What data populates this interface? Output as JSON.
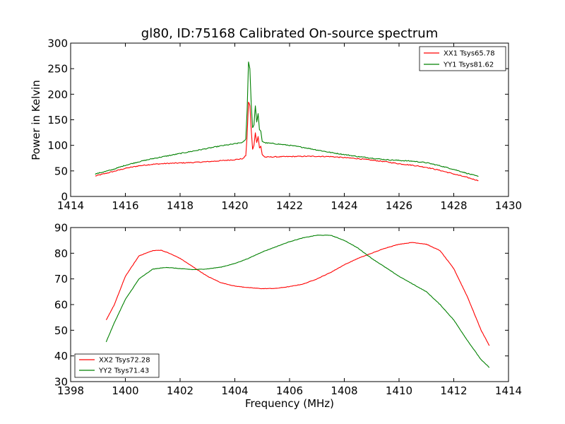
{
  "title": "gl80, ID:75168 Calibrated On-source spectrum",
  "colors": {
    "red": "#ff0000",
    "green": "#008000"
  },
  "chart_data": [
    {
      "type": "line",
      "ylabel": "Power in Kelvin",
      "xlabel": "",
      "xlim": [
        1414,
        1430
      ],
      "ylim": [
        0,
        300
      ],
      "xticks": [
        "1414",
        "1416",
        "1418",
        "1420",
        "1422",
        "1424",
        "1426",
        "1428",
        "1430"
      ],
      "yticks": [
        "0",
        "50",
        "100",
        "150",
        "200",
        "250",
        "300"
      ],
      "legend_position": "top-right",
      "series": [
        {
          "name": "XX1 Tsys65.78",
          "color": "#ff0000",
          "points": [
            [
              1414.9,
              40
            ],
            [
              1415.5,
              48
            ],
            [
              1416,
              55
            ],
            [
              1416.5,
              60
            ],
            [
              1417,
              63
            ],
            [
              1417.5,
              64.5
            ],
            [
              1418,
              65.5
            ],
            [
              1418.5,
              66.5
            ],
            [
              1419,
              68
            ],
            [
              1419.5,
              70
            ],
            [
              1420,
              72
            ],
            [
              1420.3,
              74
            ],
            [
              1420.4,
              80
            ],
            [
              1420.45,
              120
            ],
            [
              1420.5,
              185
            ],
            [
              1420.55,
              178
            ],
            [
              1420.6,
              130
            ],
            [
              1420.65,
              92
            ],
            [
              1420.7,
              100
            ],
            [
              1420.75,
              125
            ],
            [
              1420.8,
              105
            ],
            [
              1420.85,
              118
            ],
            [
              1420.9,
              95
            ],
            [
              1420.95,
              98
            ],
            [
              1421,
              82
            ],
            [
              1421.1,
              77
            ],
            [
              1421.5,
              77.5
            ],
            [
              1422,
              78
            ],
            [
              1422.5,
              78.5
            ],
            [
              1423,
              78.5
            ],
            [
              1423.5,
              78
            ],
            [
              1424,
              76
            ],
            [
              1424.5,
              74
            ],
            [
              1425,
              71
            ],
            [
              1425.5,
              68
            ],
            [
              1426,
              64
            ],
            [
              1426.5,
              61
            ],
            [
              1427,
              57
            ],
            [
              1427.5,
              51
            ],
            [
              1428,
              44
            ],
            [
              1428.5,
              37
            ],
            [
              1428.9,
              31
            ]
          ]
        },
        {
          "name": "YY1 Tsys81.62",
          "color": "#008000",
          "points": [
            [
              1414.9,
              44
            ],
            [
              1415.5,
              52
            ],
            [
              1416,
              61
            ],
            [
              1416.5,
              68
            ],
            [
              1417,
              74
            ],
            [
              1417.5,
              79
            ],
            [
              1418,
              84
            ],
            [
              1418.5,
              89
            ],
            [
              1419,
              94
            ],
            [
              1419.5,
              99
            ],
            [
              1420,
              103
            ],
            [
              1420.3,
              106
            ],
            [
              1420.4,
              112
            ],
            [
              1420.45,
              170
            ],
            [
              1420.5,
              263
            ],
            [
              1420.55,
              250
            ],
            [
              1420.6,
              180
            ],
            [
              1420.65,
              135
            ],
            [
              1420.7,
              140
            ],
            [
              1420.75,
              178
            ],
            [
              1420.8,
              145
            ],
            [
              1420.85,
              162
            ],
            [
              1420.9,
              130
            ],
            [
              1420.95,
              128
            ],
            [
              1421,
              108
            ],
            [
              1421.1,
              105
            ],
            [
              1421.5,
              103
            ],
            [
              1422,
              100
            ],
            [
              1422.5,
              96
            ],
            [
              1423,
              91
            ],
            [
              1423.5,
              86
            ],
            [
              1424,
              82
            ],
            [
              1424.5,
              78
            ],
            [
              1425,
              75
            ],
            [
              1425.5,
              72
            ],
            [
              1426,
              70.5
            ],
            [
              1426.5,
              69
            ],
            [
              1427,
              66
            ],
            [
              1427.5,
              60
            ],
            [
              1428,
              53
            ],
            [
              1428.5,
              45
            ],
            [
              1428.9,
              39
            ]
          ]
        }
      ]
    },
    {
      "type": "line",
      "ylabel": "",
      "xlabel": "Frequency (MHz)",
      "xlim": [
        1398,
        1414
      ],
      "ylim": [
        30,
        90
      ],
      "xticks": [
        "1398",
        "1400",
        "1402",
        "1404",
        "1406",
        "1408",
        "1410",
        "1412",
        "1414"
      ],
      "yticks": [
        "30",
        "40",
        "50",
        "60",
        "70",
        "80",
        "90"
      ],
      "legend_position": "bottom-left",
      "series": [
        {
          "name": "XX2 Tsys72.28",
          "color": "#ff0000",
          "points": [
            [
              1399.3,
              54
            ],
            [
              1399.6,
              60
            ],
            [
              1400,
              71
            ],
            [
              1400.5,
              79
            ],
            [
              1401,
              81
            ],
            [
              1401.3,
              81.2
            ],
            [
              1401.6,
              80
            ],
            [
              1402,
              78
            ],
            [
              1402.5,
              74.5
            ],
            [
              1403,
              71
            ],
            [
              1403.5,
              68.5
            ],
            [
              1404,
              67.2
            ],
            [
              1404.5,
              66.6
            ],
            [
              1405,
              66.2
            ],
            [
              1405.5,
              66.3
            ],
            [
              1406,
              67
            ],
            [
              1406.5,
              68
            ],
            [
              1407,
              70
            ],
            [
              1407.5,
              72.5
            ],
            [
              1408,
              75.5
            ],
            [
              1408.5,
              78
            ],
            [
              1409,
              80
            ],
            [
              1409.5,
              82
            ],
            [
              1410,
              83.5
            ],
            [
              1410.5,
              84.2
            ],
            [
              1411,
              83.5
            ],
            [
              1411.5,
              81
            ],
            [
              1412,
              74
            ],
            [
              1412.5,
              63
            ],
            [
              1413,
              50
            ],
            [
              1413.3,
              44
            ]
          ]
        },
        {
          "name": "YY2 Tsys71.43",
          "color": "#008000",
          "points": [
            [
              1399.3,
              45.5
            ],
            [
              1399.6,
              53
            ],
            [
              1400,
              62
            ],
            [
              1400.5,
              70
            ],
            [
              1401,
              73.8
            ],
            [
              1401.5,
              74.5
            ],
            [
              1402,
              74
            ],
            [
              1402.5,
              73.6
            ],
            [
              1403,
              73.9
            ],
            [
              1403.5,
              74.6
            ],
            [
              1404,
              76
            ],
            [
              1404.5,
              78
            ],
            [
              1405,
              80.5
            ],
            [
              1405.5,
              82.5
            ],
            [
              1406,
              84.5
            ],
            [
              1406.5,
              86
            ],
            [
              1407,
              87
            ],
            [
              1407.5,
              87
            ],
            [
              1408,
              85
            ],
            [
              1408.5,
              82
            ],
            [
              1409,
              78
            ],
            [
              1409.5,
              74.5
            ],
            [
              1410,
              71
            ],
            [
              1410.5,
              68
            ],
            [
              1411,
              65
            ],
            [
              1411.5,
              60
            ],
            [
              1412,
              54
            ],
            [
              1412.5,
              46
            ],
            [
              1413,
              38.5
            ],
            [
              1413.3,
              35.5
            ]
          ]
        }
      ]
    }
  ]
}
